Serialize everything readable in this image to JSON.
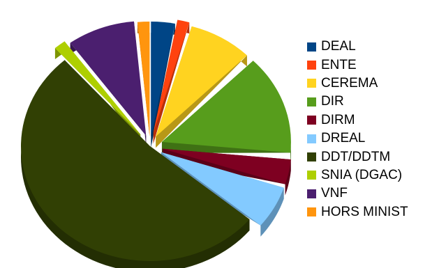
{
  "chart_data": {
    "type": "pie",
    "style": "3d-exploded",
    "title": "",
    "legend_position": "right",
    "series": [
      {
        "name": "DEAL",
        "value": 3.0,
        "color": "#004586"
      },
      {
        "name": "ENTE",
        "value": 1.5,
        "color": "#ff420e"
      },
      {
        "name": "CEREMA",
        "value": 8.0,
        "color": "#ffd320"
      },
      {
        "name": "DIR",
        "value": 14.0,
        "color": "#579d1c"
      },
      {
        "name": "DIRM",
        "value": 3.5,
        "color": "#7e0021"
      },
      {
        "name": "DREAL",
        "value": 6.0,
        "color": "#83caff"
      },
      {
        "name": "DDT/DDTM",
        "value": 52.5,
        "color": "#314004"
      },
      {
        "name": "SNIA (DGAC)",
        "value": 1.5,
        "color": "#aecf00"
      },
      {
        "name": "VNF",
        "value": 8.5,
        "color": "#4b1f6f"
      },
      {
        "name": "HORS MINIST",
        "value": 1.5,
        "color": "#ff950e"
      }
    ]
  }
}
